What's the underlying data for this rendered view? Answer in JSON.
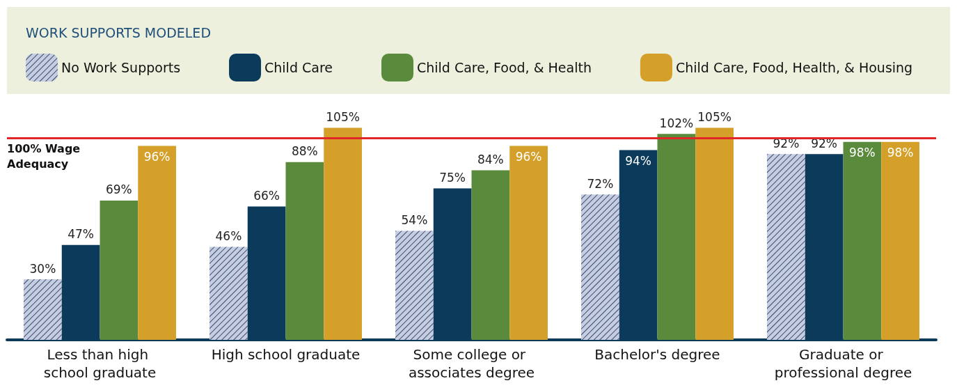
{
  "chart_data": {
    "type": "bar",
    "legend_title": "WORK SUPPORTS MODELED",
    "categories": [
      "Less than high school graduate",
      "High school graduate",
      "Some college or associates degree",
      "Bachelor's degree",
      "Graduate or professional degree"
    ],
    "series": [
      {
        "name": "No Work Supports",
        "color": "#c5cde0",
        "values": [
          30,
          46,
          54,
          72,
          92
        ],
        "value_labels": [
          "30%",
          "46%",
          "54%",
          "72%",
          "92%"
        ]
      },
      {
        "name": "Child Care",
        "color": "#0b3a5a",
        "values": [
          47,
          66,
          75,
          94,
          92
        ],
        "value_labels": [
          "47%",
          "66%",
          "75%",
          "94%",
          "92%"
        ]
      },
      {
        "name": "Child Care, Food, & Health",
        "color": "#5a8a3c",
        "values": [
          69,
          88,
          84,
          102,
          98
        ],
        "value_labels": [
          "69%",
          "88%",
          "84%",
          "102%",
          "98%"
        ]
      },
      {
        "name": "Child Care, Food, Health, & Housing",
        "color": "#d4a02a",
        "values": [
          96,
          105,
          96,
          105,
          98
        ],
        "value_labels": [
          "96%",
          "105%",
          "96%",
          "105%",
          "98%"
        ]
      }
    ],
    "ref_lines": [
      {
        "axis": "y",
        "value": 100,
        "label": "100% Wage Adequacy",
        "color": "#e02626"
      }
    ],
    "legend": "top",
    "grid": false
  }
}
